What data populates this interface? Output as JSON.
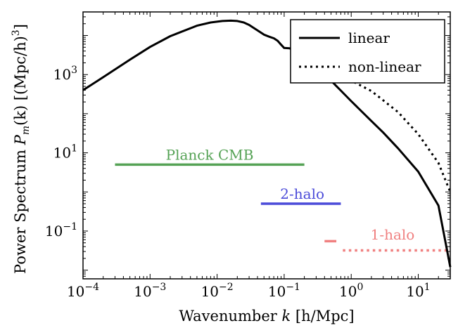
{
  "chart_data": {
    "type": "line",
    "xscale": "log",
    "yscale": "log",
    "xlim": [
      0.0001,
      30
    ],
    "ylim": [
      0.006,
      40000
    ],
    "xlabel": {
      "text": "Wavenumber",
      "var": "k",
      "unit": "[h/Mpc]"
    },
    "ylabel": {
      "text": "Power Spectrum",
      "var": "P",
      "sub": "m",
      "arg": "(k)",
      "unit": "[(Mpc/h)",
      "unit_sup": "3",
      "unit_close": "]"
    },
    "x_ticks": [
      {
        "value": 0.0001,
        "base": "10",
        "exp": "−4"
      },
      {
        "value": 0.001,
        "base": "10",
        "exp": "−3"
      },
      {
        "value": 0.01,
        "base": "10",
        "exp": "−2"
      },
      {
        "value": 0.1,
        "base": "10",
        "exp": "−1"
      },
      {
        "value": 1,
        "base": "10",
        "exp": "0"
      },
      {
        "value": 10,
        "base": "10",
        "exp": "1"
      }
    ],
    "y_ticks": [
      {
        "value": 0.1,
        "base": "10",
        "exp": "−1"
      },
      {
        "value": 10,
        "base": "10",
        "exp": "1"
      },
      {
        "value": 1000,
        "base": "10",
        "exp": "3"
      }
    ],
    "grid": false,
    "legend": {
      "position": "top-right"
    },
    "series": [
      {
        "name": "linear",
        "style": "solid",
        "color": "#000000",
        "x": [
          0.0001,
          0.0002,
          0.0005,
          0.001,
          0.002,
          0.005,
          0.008,
          0.012,
          0.016,
          0.02,
          0.025,
          0.03,
          0.04,
          0.05,
          0.06,
          0.07,
          0.08,
          0.09,
          0.1,
          0.12,
          0.15,
          0.2,
          0.3,
          0.5,
          0.7,
          1,
          2,
          3,
          5,
          10,
          20,
          30
        ],
        "y": [
          400,
          860,
          2400,
          5100,
          9600,
          17800,
          21500,
          23500,
          24000,
          23500,
          21500,
          18600,
          13500,
          10500,
          9300,
          8500,
          7300,
          5800,
          4800,
          4700,
          4000,
          2800,
          1600,
          700,
          390,
          210,
          65,
          33,
          13,
          3.3,
          0.45,
          0.012
        ]
      },
      {
        "name": "non-linear",
        "style": "dotted",
        "color": "#000000",
        "x": [
          0.2,
          0.3,
          0.5,
          1,
          2,
          3,
          5,
          10,
          20,
          30
        ],
        "y": [
          2800,
          1700,
          1000,
          700,
          380,
          220,
          110,
          30,
          5.5,
          1
        ]
      }
    ],
    "annotations": [
      {
        "text": "Planck CMB",
        "color": "#55a255",
        "x_range": [
          0.0003,
          0.2
        ],
        "y": 5,
        "style": "solid"
      },
      {
        "text": "2-halo",
        "color": "#4b4bd9",
        "x_range": [
          0.045,
          0.7
        ],
        "y": 0.5,
        "style": "solid"
      },
      {
        "text": "1-halo",
        "color": "#f08080",
        "segments": [
          {
            "x_range": [
              0.4,
              0.6
            ],
            "y": 0.055,
            "style": "solid"
          },
          {
            "x_range": [
              0.75,
              28
            ],
            "y": 0.032,
            "style": "dotted"
          }
        ]
      }
    ]
  }
}
